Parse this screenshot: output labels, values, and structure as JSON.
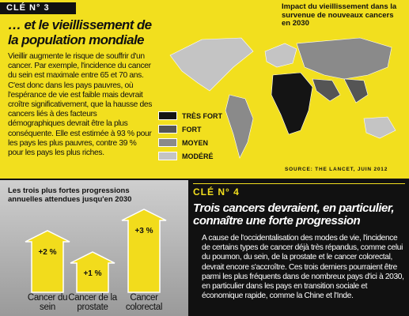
{
  "cle3": {
    "label": "CLÉ N° 3",
    "title": "… et le vieillissement de la population mondiale",
    "text": "Vieillir augmente le risque de souffrir d'un cancer. Par exemple, l'incidence du cancer du sein est maximale entre 65 et 70 ans. C'est donc dans les pays pauvres, où l'espérance de vie est faible mais devrait croître significativement, que la hausse des cancers liés à des facteurs démographiques devrait être la plus conséquente. Elle est estimée à 93 % pour les pays les plus pauvres, contre 39 % pour les pays les plus riches."
  },
  "map": {
    "title": "Impact du vieillissement dans la survenue de nouveaux cancers en 2030",
    "legend": [
      {
        "label": "TRÈS FORT",
        "color": "#141414"
      },
      {
        "label": "FORT",
        "color": "#555555"
      },
      {
        "label": "MOYEN",
        "color": "#8a8a8a"
      },
      {
        "label": "MODÉRÉ",
        "color": "#c4c4c4"
      }
    ],
    "source": "SOURCE: THE LANCET, JUIN 2012"
  },
  "progressions": {
    "title": "Les trois plus fortes progressions annuelles attendues jusqu'en 2030",
    "categories": [
      "Cancer du sein",
      "Cancer de la prostate",
      "Cancer colorectal"
    ],
    "values": [
      2,
      1,
      3
    ],
    "value_labels": [
      "+2 %",
      "+1 %",
      "+3 %"
    ],
    "color": "#f2dc1c"
  },
  "cle4": {
    "label": "CLÉ N° 4",
    "title": "Trois cancers devraient, en particulier, connaître une forte progression",
    "text": "A cause de l'occidentalisation des modes de vie, l'incidence de certains types de cancer déjà très répandus, comme celui du poumon, du sein, de la prostate et le cancer colorectal, devrait encore s'accroître. Ces trois derniers pourraient être parmi les plus fréquents dans de nombreux pays d'ici à 2030, en particulier dans les pays en transition sociale et économique rapide, comme la Chine et l'Inde."
  }
}
